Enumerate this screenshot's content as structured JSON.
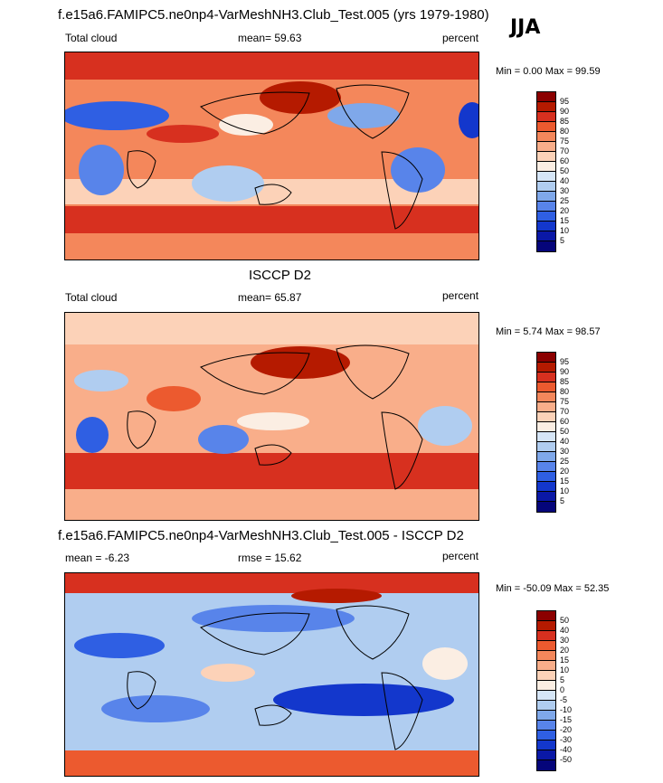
{
  "season": "JJA",
  "panels": [
    {
      "heading": "f.e15a6.FAMIPC5.ne0np4-VarMeshNH3.Club_Test.005 (yrs 1979-1980)",
      "left_label": "Total cloud",
      "center_label": "mean=  59.63",
      "right_label": "percent",
      "minmax": "Min =   0.00 Max =  99.59",
      "colorbar": {
        "colors": [
          "#8b0000",
          "#b51a00",
          "#d7301f",
          "#ec5a2f",
          "#f4875b",
          "#f9ae8a",
          "#fcd2b8",
          "#fbeee3",
          "#d6e6f7",
          "#b0cdf0",
          "#7fa8ea",
          "#5884ea",
          "#2f5fe3",
          "#1337cc",
          "#0a18a6",
          "#05057a"
        ],
        "labels": [
          "95",
          "90",
          "85",
          "80",
          "75",
          "70",
          "60",
          "50",
          "40",
          "30",
          "25",
          "20",
          "15",
          "10",
          "5"
        ]
      }
    },
    {
      "heading": "ISCCP D2",
      "left_label": "Total cloud",
      "center_label": "mean=  65.87",
      "right_label": "percent",
      "minmax": "Min =   5.74 Max =  98.57",
      "colorbar": {
        "colors": [
          "#8b0000",
          "#b51a00",
          "#d7301f",
          "#ec5a2f",
          "#f4875b",
          "#f9ae8a",
          "#fcd2b8",
          "#fbeee3",
          "#d6e6f7",
          "#b0cdf0",
          "#7fa8ea",
          "#5884ea",
          "#2f5fe3",
          "#1337cc",
          "#0a18a6",
          "#05057a"
        ],
        "labels": [
          "95",
          "90",
          "85",
          "80",
          "75",
          "70",
          "60",
          "50",
          "40",
          "30",
          "25",
          "20",
          "15",
          "10",
          "5"
        ]
      }
    },
    {
      "heading": "f.e15a6.FAMIPC5.ne0np4-VarMeshNH3.Club_Test.005 - ISCCP D2",
      "left_label": "mean =  -6.23",
      "center_label": "rmse =  15.62",
      "right_label": "percent",
      "minmax": "Min = -50.09 Max =  52.35",
      "colorbar": {
        "colors": [
          "#8b0000",
          "#b51a00",
          "#d7301f",
          "#ec5a2f",
          "#f4875b",
          "#f9ae8a",
          "#fcd2b8",
          "#fbeee3",
          "#d6e6f7",
          "#b0cdf0",
          "#7fa8ea",
          "#5884ea",
          "#2f5fe3",
          "#1337cc",
          "#0a18a6",
          "#05057a"
        ],
        "labels": [
          "50",
          "40",
          "30",
          "20",
          "15",
          "10",
          "5",
          "0",
          "-5",
          "-10",
          "-15",
          "-20",
          "-30",
          "-40",
          "-50"
        ]
      }
    }
  ]
}
